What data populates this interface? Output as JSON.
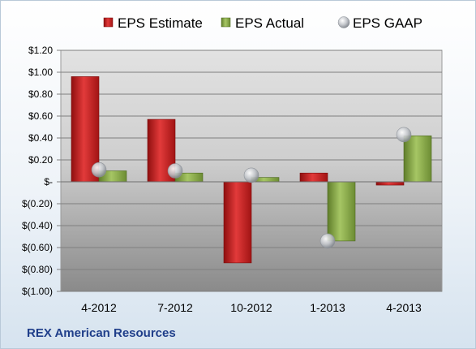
{
  "chart_data": {
    "type": "bar",
    "categories": [
      "4-2012",
      "7-2012",
      "10-2012",
      "1-2013",
      "4-2013"
    ],
    "series": [
      {
        "name": "EPS Estimate",
        "type": "bar",
        "color": "#cc1f1f",
        "values": [
          0.96,
          0.57,
          -0.74,
          0.08,
          -0.03
        ]
      },
      {
        "name": "EPS Actual",
        "type": "bar",
        "color": "#8fb04a",
        "values": [
          0.1,
          0.08,
          0.04,
          -0.54,
          0.42
        ]
      },
      {
        "name": "EPS GAAP",
        "type": "scatter",
        "color": "#b8bcc2",
        "values": [
          0.11,
          0.1,
          0.06,
          -0.54,
          0.43
        ]
      }
    ],
    "ylim": [
      -1.0,
      1.2
    ],
    "yticks": [
      1.2,
      1.0,
      0.8,
      0.6,
      0.4,
      0.2,
      0,
      -0.2,
      -0.4,
      -0.6,
      -0.8,
      -1.0
    ],
    "ytick_labels": [
      "$1.20",
      "$1.00",
      "$0.80",
      "$0.60",
      "$0.40",
      "$0.20",
      "$-",
      "$(0.20)",
      "$(0.40)",
      "$(0.60)",
      "$(0.80)",
      "$(1.00)"
    ],
    "grid": true,
    "legend_position": "top"
  },
  "footer": {
    "company": "REX American Resources"
  }
}
